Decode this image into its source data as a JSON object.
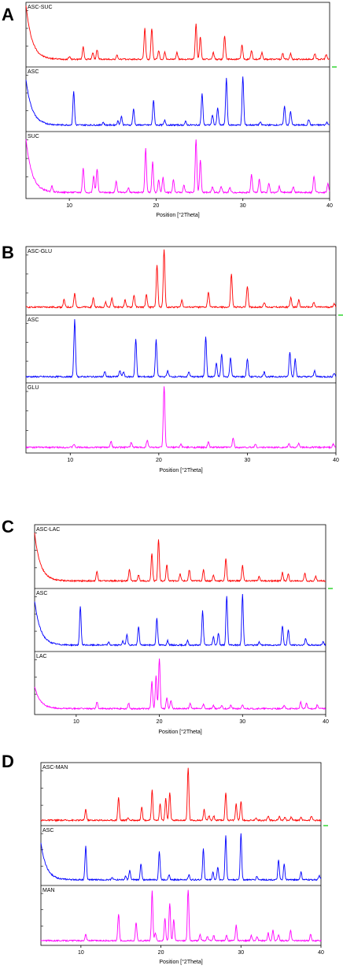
{
  "panels": [
    {
      "letter": "A",
      "xlabel": "Position [°2Theta]",
      "xticks": [
        "10",
        "20",
        "30",
        "40"
      ],
      "traces": [
        {
          "label": "ASC-SUC",
          "color": "#ff0000"
        },
        {
          "label": "ASC",
          "color": "#0000ff"
        },
        {
          "label": "SUC",
          "color": "#ff00ff"
        }
      ]
    },
    {
      "letter": "B",
      "xlabel": "Position [°2Theta]",
      "xticks": [
        "10",
        "20",
        "30",
        "40"
      ],
      "traces": [
        {
          "label": "ASC-GLU",
          "color": "#ff0000"
        },
        {
          "label": "ASC",
          "color": "#0000ff"
        },
        {
          "label": "GLU",
          "color": "#ff00ff"
        }
      ]
    },
    {
      "letter": "C",
      "xlabel": "Position [°2Theta]",
      "xticks": [
        "10",
        "20",
        "30",
        "40"
      ],
      "traces": [
        {
          "label": "ASC-LAC",
          "color": "#ff0000"
        },
        {
          "label": "ASC",
          "color": "#0000ff"
        },
        {
          "label": "LAC",
          "color": "#ff00ff"
        }
      ]
    },
    {
      "letter": "D",
      "xlabel": "Position [°2Theta]",
      "xticks": [
        "10",
        "20",
        "30",
        "40"
      ],
      "traces": [
        {
          "label": "ASC-MAN",
          "color": "#ff0000"
        },
        {
          "label": "ASC",
          "color": "#0000ff"
        },
        {
          "label": "MAN",
          "color": "#ff00ff"
        }
      ]
    }
  ],
  "chart_data": [
    {
      "type": "line",
      "xlabel": "Position [°2Theta]",
      "xlim": [
        5,
        40
      ],
      "series": [
        {
          "name": "ASC-SUC",
          "baseline": 0.08,
          "low_angle_rise": 0.95,
          "peaks": [
            [
              10.0,
              0.05
            ],
            [
              11.6,
              0.22
            ],
            [
              12.7,
              0.12
            ],
            [
              13.2,
              0.17
            ],
            [
              15.5,
              0.07
            ],
            [
              18.7,
              0.55
            ],
            [
              19.5,
              0.55
            ],
            [
              20.3,
              0.15
            ],
            [
              21.0,
              0.12
            ],
            [
              22.4,
              0.12
            ],
            [
              24.6,
              0.62
            ],
            [
              25.1,
              0.4
            ],
            [
              26.6,
              0.12
            ],
            [
              27.9,
              0.42
            ],
            [
              29.9,
              0.25
            ],
            [
              31.0,
              0.16
            ],
            [
              32.2,
              0.12
            ],
            [
              34.6,
              0.1
            ],
            [
              35.5,
              0.1
            ],
            [
              38.3,
              0.1
            ],
            [
              39.6,
              0.08
            ]
          ]
        },
        {
          "name": "ASC",
          "baseline": 0.06,
          "low_angle_rise": 0.8,
          "peaks": [
            [
              10.5,
              0.6
            ],
            [
              13.9,
              0.05
            ],
            [
              15.6,
              0.07
            ],
            [
              16.0,
              0.15
            ],
            [
              17.4,
              0.28
            ],
            [
              19.7,
              0.44
            ],
            [
              21.0,
              0.08
            ],
            [
              23.4,
              0.06
            ],
            [
              25.3,
              0.55
            ],
            [
              26.5,
              0.18
            ],
            [
              27.1,
              0.3
            ],
            [
              28.1,
              0.82
            ],
            [
              30.0,
              0.85
            ],
            [
              32.0,
              0.05
            ],
            [
              34.8,
              0.33
            ],
            [
              35.5,
              0.24
            ],
            [
              37.6,
              0.1
            ],
            [
              39.7,
              0.05
            ]
          ]
        },
        {
          "name": "SUC",
          "baseline": 0.05,
          "low_angle_rise": 0.9,
          "peaks": [
            [
              8.0,
              0.1
            ],
            [
              11.6,
              0.42
            ],
            [
              12.8,
              0.28
            ],
            [
              13.2,
              0.4
            ],
            [
              15.4,
              0.2
            ],
            [
              16.8,
              0.08
            ],
            [
              18.8,
              0.75
            ],
            [
              19.6,
              0.52
            ],
            [
              20.3,
              0.22
            ],
            [
              20.8,
              0.25
            ],
            [
              22.0,
              0.22
            ],
            [
              23.2,
              0.12
            ],
            [
              24.6,
              0.9
            ],
            [
              25.1,
              0.55
            ],
            [
              26.5,
              0.1
            ],
            [
              27.5,
              0.1
            ],
            [
              28.5,
              0.08
            ],
            [
              31.0,
              0.3
            ],
            [
              31.9,
              0.22
            ],
            [
              33.0,
              0.15
            ],
            [
              34.2,
              0.1
            ],
            [
              35.8,
              0.1
            ],
            [
              38.2,
              0.28
            ],
            [
              39.8,
              0.15
            ]
          ]
        }
      ]
    },
    {
      "type": "line",
      "xlabel": "Position [°2Theta]",
      "xlim": [
        5,
        40
      ],
      "series": [
        {
          "name": "ASC-GLU",
          "baseline": 0.08,
          "low_angle_rise": 0,
          "peaks": [
            [
              9.3,
              0.12
            ],
            [
              10.5,
              0.22
            ],
            [
              12.6,
              0.15
            ],
            [
              14.0,
              0.08
            ],
            [
              14.7,
              0.15
            ],
            [
              16.2,
              0.12
            ],
            [
              17.2,
              0.2
            ],
            [
              18.6,
              0.2
            ],
            [
              19.8,
              0.7
            ],
            [
              20.6,
              0.95
            ],
            [
              22.6,
              0.12
            ],
            [
              25.6,
              0.25
            ],
            [
              28.2,
              0.55
            ],
            [
              30.0,
              0.35
            ],
            [
              31.9,
              0.08
            ],
            [
              34.9,
              0.15
            ],
            [
              35.8,
              0.12
            ],
            [
              37.5,
              0.08
            ],
            [
              39.8,
              0.06
            ]
          ]
        },
        {
          "name": "ASC",
          "baseline": 0.05,
          "low_angle_rise": 0,
          "peaks": [
            [
              10.5,
              0.95
            ],
            [
              13.9,
              0.08
            ],
            [
              15.6,
              0.1
            ],
            [
              16.0,
              0.08
            ],
            [
              17.4,
              0.62
            ],
            [
              19.7,
              0.62
            ],
            [
              21.0,
              0.1
            ],
            [
              23.4,
              0.08
            ],
            [
              25.3,
              0.68
            ],
            [
              26.5,
              0.22
            ],
            [
              27.1,
              0.38
            ],
            [
              28.1,
              0.32
            ],
            [
              30.0,
              0.3
            ],
            [
              31.9,
              0.08
            ],
            [
              34.8,
              0.42
            ],
            [
              35.4,
              0.3
            ],
            [
              37.6,
              0.1
            ],
            [
              39.8,
              0.06
            ]
          ]
        },
        {
          "name": "GLU",
          "baseline": 0.04,
          "low_angle_rise": 0,
          "peaks": [
            [
              10.4,
              0.05
            ],
            [
              14.6,
              0.1
            ],
            [
              16.9,
              0.08
            ],
            [
              18.7,
              0.12
            ],
            [
              20.6,
              0.98
            ],
            [
              22.5,
              0.05
            ],
            [
              25.6,
              0.08
            ],
            [
              28.4,
              0.15
            ],
            [
              30.9,
              0.05
            ],
            [
              34.7,
              0.05
            ],
            [
              35.8,
              0.07
            ],
            [
              39.7,
              0.05
            ]
          ]
        }
      ]
    },
    {
      "type": "line",
      "xlabel": "Position [°2Theta]",
      "xlim": [
        5,
        40
      ],
      "series": [
        {
          "name": "ASC-LAC",
          "baseline": 0.08,
          "low_angle_rise": 0.85,
          "peaks": [
            [
              12.5,
              0.18
            ],
            [
              16.4,
              0.2
            ],
            [
              17.5,
              0.1
            ],
            [
              19.1,
              0.5
            ],
            [
              19.9,
              0.75
            ],
            [
              20.9,
              0.3
            ],
            [
              22.5,
              0.12
            ],
            [
              23.6,
              0.2
            ],
            [
              25.3,
              0.2
            ],
            [
              26.5,
              0.1
            ],
            [
              28.0,
              0.4
            ],
            [
              30.0,
              0.28
            ],
            [
              32.0,
              0.08
            ],
            [
              34.8,
              0.15
            ],
            [
              35.5,
              0.12
            ],
            [
              37.5,
              0.14
            ],
            [
              38.8,
              0.08
            ]
          ]
        },
        {
          "name": "ASC",
          "baseline": 0.06,
          "low_angle_rise": 0.8,
          "peaks": [
            [
              10.5,
              0.7
            ],
            [
              13.9,
              0.05
            ],
            [
              15.6,
              0.07
            ],
            [
              16.1,
              0.2
            ],
            [
              17.5,
              0.33
            ],
            [
              19.7,
              0.5
            ],
            [
              21.0,
              0.08
            ],
            [
              23.4,
              0.08
            ],
            [
              25.2,
              0.62
            ],
            [
              26.5,
              0.15
            ],
            [
              27.1,
              0.22
            ],
            [
              28.1,
              0.9
            ],
            [
              30.0,
              0.92
            ],
            [
              32.0,
              0.06
            ],
            [
              34.8,
              0.35
            ],
            [
              35.5,
              0.28
            ],
            [
              37.6,
              0.12
            ],
            [
              39.7,
              0.06
            ]
          ]
        },
        {
          "name": "LAC",
          "baseline": 0.05,
          "low_angle_rise": 0.4,
          "peaks": [
            [
              12.5,
              0.12
            ],
            [
              16.3,
              0.1
            ],
            [
              19.1,
              0.5
            ],
            [
              19.6,
              0.6
            ],
            [
              20.0,
              0.92
            ],
            [
              20.9,
              0.2
            ],
            [
              21.4,
              0.15
            ],
            [
              23.7,
              0.1
            ],
            [
              25.3,
              0.08
            ],
            [
              26.5,
              0.06
            ],
            [
              27.5,
              0.06
            ],
            [
              28.6,
              0.06
            ],
            [
              30.0,
              0.06
            ],
            [
              35.0,
              0.06
            ],
            [
              37.0,
              0.12
            ],
            [
              37.7,
              0.1
            ],
            [
              39.0,
              0.07
            ]
          ]
        }
      ]
    },
    {
      "type": "line",
      "xlabel": "Position [°2Theta]",
      "xlim": [
        5,
        40
      ],
      "series": [
        {
          "name": "ASC-MAN",
          "baseline": 0.04,
          "low_angle_rise": 0,
          "peaks": [
            [
              10.6,
              0.2
            ],
            [
              14.7,
              0.42
            ],
            [
              15.9,
              0.05
            ],
            [
              17.6,
              0.25
            ],
            [
              18.9,
              0.55
            ],
            [
              19.9,
              0.3
            ],
            [
              20.6,
              0.4
            ],
            [
              21.1,
              0.5
            ],
            [
              23.4,
              0.95
            ],
            [
              25.4,
              0.2
            ],
            [
              26.0,
              0.08
            ],
            [
              26.6,
              0.08
            ],
            [
              28.1,
              0.5
            ],
            [
              29.4,
              0.3
            ],
            [
              30.0,
              0.35
            ],
            [
              31.9,
              0.05
            ],
            [
              33.4,
              0.08
            ],
            [
              34.8,
              0.08
            ],
            [
              35.5,
              0.06
            ],
            [
              36.3,
              0.06
            ],
            [
              37.5,
              0.06
            ],
            [
              38.8,
              0.08
            ]
          ]
        },
        {
          "name": "ASC",
          "baseline": 0.05,
          "low_angle_rise": 0.7,
          "peaks": [
            [
              10.6,
              0.65
            ],
            [
              13.9,
              0.05
            ],
            [
              15.6,
              0.07
            ],
            [
              16.1,
              0.18
            ],
            [
              17.5,
              0.3
            ],
            [
              19.8,
              0.55
            ],
            [
              21.0,
              0.1
            ],
            [
              23.5,
              0.1
            ],
            [
              25.3,
              0.6
            ],
            [
              26.5,
              0.15
            ],
            [
              27.1,
              0.25
            ],
            [
              28.1,
              0.85
            ],
            [
              30.0,
              0.9
            ],
            [
              32.0,
              0.07
            ],
            [
              34.7,
              0.38
            ],
            [
              35.4,
              0.3
            ],
            [
              37.5,
              0.15
            ],
            [
              39.8,
              0.08
            ]
          ]
        },
        {
          "name": "MAN",
          "baseline": 0.03,
          "low_angle_rise": 0,
          "peaks": [
            [
              10.6,
              0.12
            ],
            [
              14.7,
              0.52
            ],
            [
              16.9,
              0.35
            ],
            [
              18.9,
              0.95
            ],
            [
              19.3,
              0.15
            ],
            [
              20.5,
              0.42
            ],
            [
              21.1,
              0.72
            ],
            [
              21.6,
              0.4
            ],
            [
              23.4,
              0.98
            ],
            [
              24.9,
              0.12
            ],
            [
              25.8,
              0.08
            ],
            [
              26.6,
              0.1
            ],
            [
              28.2,
              0.1
            ],
            [
              29.4,
              0.3
            ],
            [
              31.3,
              0.1
            ],
            [
              32.0,
              0.08
            ],
            [
              33.4,
              0.15
            ],
            [
              34.0,
              0.2
            ],
            [
              34.7,
              0.12
            ],
            [
              36.2,
              0.2
            ],
            [
              38.7,
              0.12
            ]
          ]
        }
      ]
    }
  ]
}
